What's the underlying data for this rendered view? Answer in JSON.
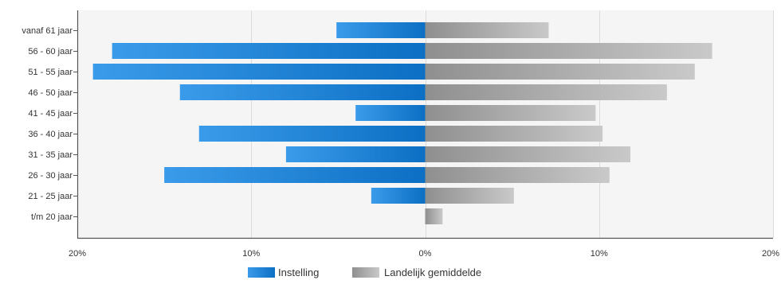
{
  "chart_data": {
    "type": "bar",
    "orientation": "horizontal-diverging",
    "categories": [
      "vanaf 61 jaar",
      "56 - 60 jaar",
      "51 - 55 jaar",
      "46 - 50 jaar",
      "41 - 45 jaar",
      "36 - 40 jaar",
      "31 - 35 jaar",
      "26 - 30 jaar",
      "21 - 25 jaar",
      "t/m 20 jaar"
    ],
    "series": [
      {
        "name": "Instelling",
        "side": "left",
        "color": "#1e7fcf",
        "values": [
          5.1,
          18.0,
          19.1,
          14.1,
          4.0,
          13.0,
          8.0,
          15.0,
          3.1,
          0.0
        ]
      },
      {
        "name": "Landelijk gemiddelde",
        "side": "right",
        "color": "#a8a8a8",
        "values": [
          7.1,
          16.5,
          15.5,
          13.9,
          9.8,
          10.2,
          11.8,
          10.6,
          5.1,
          1.0
        ]
      }
    ],
    "xlim": [
      -20,
      20
    ],
    "xticks": [
      {
        "value": -20,
        "label": "20%"
      },
      {
        "value": -10,
        "label": "10%"
      },
      {
        "value": 0,
        "label": "0%"
      },
      {
        "value": 10,
        "label": "10%"
      },
      {
        "value": 20,
        "label": "20%"
      }
    ],
    "grid": true,
    "legend_position": "bottom-center"
  }
}
